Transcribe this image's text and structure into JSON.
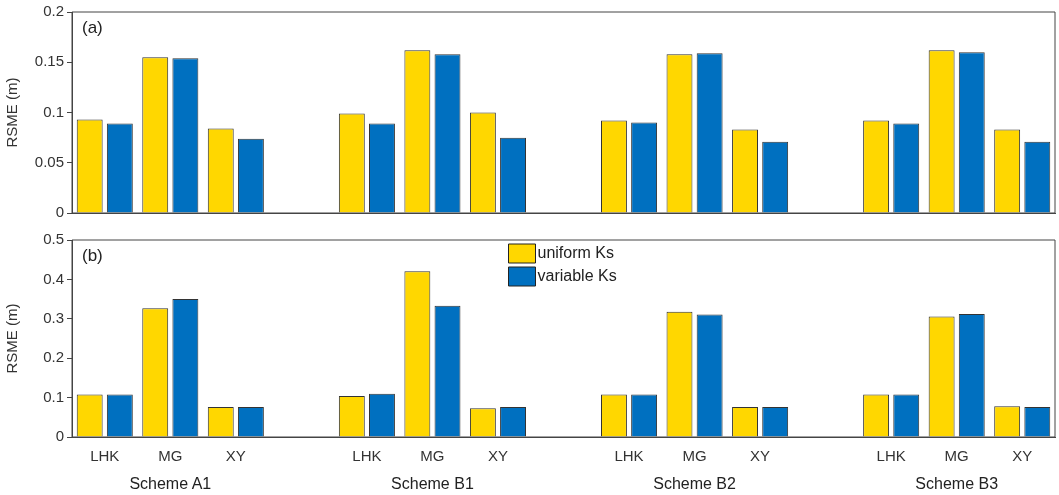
{
  "chart_data": [
    {
      "type": "bar",
      "title": "(a)",
      "ylabel": "RSME (m)",
      "categories": [
        null,
        null,
        null,
        null,
        null,
        null,
        null,
        null,
        null,
        null,
        null,
        null,
        null,
        null,
        null
      ],
      "ylim": [
        0,
        0.2
      ],
      "yticks": [
        0,
        0.05,
        0.1,
        0.15,
        0.2
      ],
      "tick_labels": "y",
      "series": [
        {
          "color": "#ffd700",
          "values": [
            0.093,
            0.155,
            0.084,
            null,
            0.099,
            0.162,
            0.1,
            null,
            0.092,
            0.158,
            0.083,
            null,
            0.092,
            0.162,
            0.083
          ]
        },
        {
          "color": "#0070c0",
          "values": [
            0.089,
            0.154,
            0.074,
            null,
            0.089,
            0.158,
            0.075,
            null,
            0.09,
            0.159,
            0.071,
            null,
            0.089,
            0.16,
            0.071
          ]
        }
      ]
    },
    {
      "type": "bar",
      "title": "(b)",
      "ylabel": "RSME (m)",
      "categories": [
        "LHK",
        "MG",
        "XY",
        null,
        "LHK",
        "MG",
        "XY",
        null,
        "LHK",
        "MG",
        "XY",
        null,
        "LHK",
        "MG",
        "XY"
      ],
      "ylim": [
        0,
        0.5
      ],
      "yticks": [
        0,
        0.1,
        0.2,
        0.3,
        0.4,
        0.5
      ],
      "legend": "top",
      "annotations": [
        "Scheme A1",
        "Scheme B1",
        "Scheme B2",
        "Scheme B3"
      ],
      "series": [
        {
          "name": "uniform Ks",
          "color": "#ffd700",
          "values": [
            0.108,
            0.327,
            0.076,
            null,
            0.104,
            0.421,
            0.073,
            null,
            0.108,
            0.318,
            0.076,
            null,
            0.108,
            0.306,
            0.078
          ]
        },
        {
          "name": "variable Ks",
          "color": "#0070c0",
          "values": [
            0.108,
            0.35,
            0.076,
            null,
            0.11,
            0.333,
            0.076,
            null,
            0.108,
            0.311,
            0.076,
            null,
            0.108,
            0.312,
            0.076
          ]
        }
      ]
    }
  ]
}
